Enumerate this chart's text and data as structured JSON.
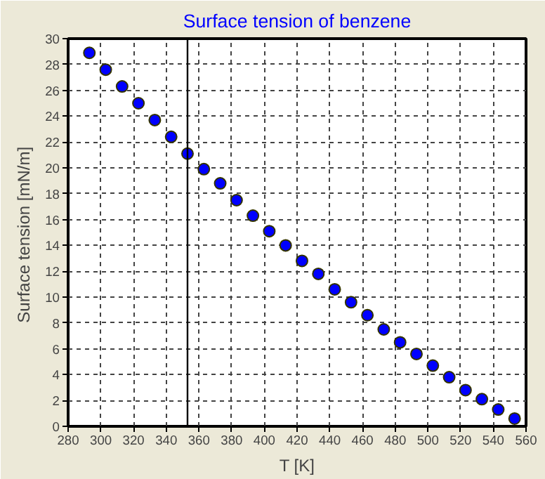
{
  "chart_data": {
    "type": "scatter",
    "title": "Surface tension of benzene",
    "xlabel": "T [K]",
    "ylabel": "Surface tension  [mN/m]",
    "x": [
      293,
      303,
      313,
      323,
      333,
      343,
      353,
      363,
      373,
      383,
      393,
      403,
      413,
      423,
      433,
      443,
      453,
      463,
      473,
      483,
      493,
      503,
      513,
      523,
      533,
      543,
      553
    ],
    "series": [
      {
        "color": "#0000ff",
        "values": [
          28.9,
          27.6,
          26.3,
          25.0,
          23.7,
          22.4,
          21.1,
          19.9,
          18.8,
          17.5,
          16.3,
          15.1,
          14.0,
          12.8,
          11.8,
          10.6,
          9.6,
          8.6,
          7.5,
          6.5,
          5.6,
          4.7,
          3.8,
          2.8,
          2.1,
          1.3,
          0.6
        ]
      }
    ],
    "xlim": [
      280,
      560
    ],
    "ylim": [
      0,
      30
    ],
    "xticks": [
      280,
      300,
      320,
      340,
      360,
      380,
      400,
      420,
      440,
      460,
      480,
      500,
      520,
      540,
      560
    ],
    "yticks": [
      0,
      2,
      4,
      6,
      8,
      10,
      12,
      14,
      16,
      18,
      20,
      22,
      24,
      26,
      28,
      30
    ],
    "ref_lines": [
      {
        "axis": "x",
        "value": 353,
        "label": null,
        "color": "#000000"
      }
    ],
    "grid": true,
    "marker": "circle"
  }
}
